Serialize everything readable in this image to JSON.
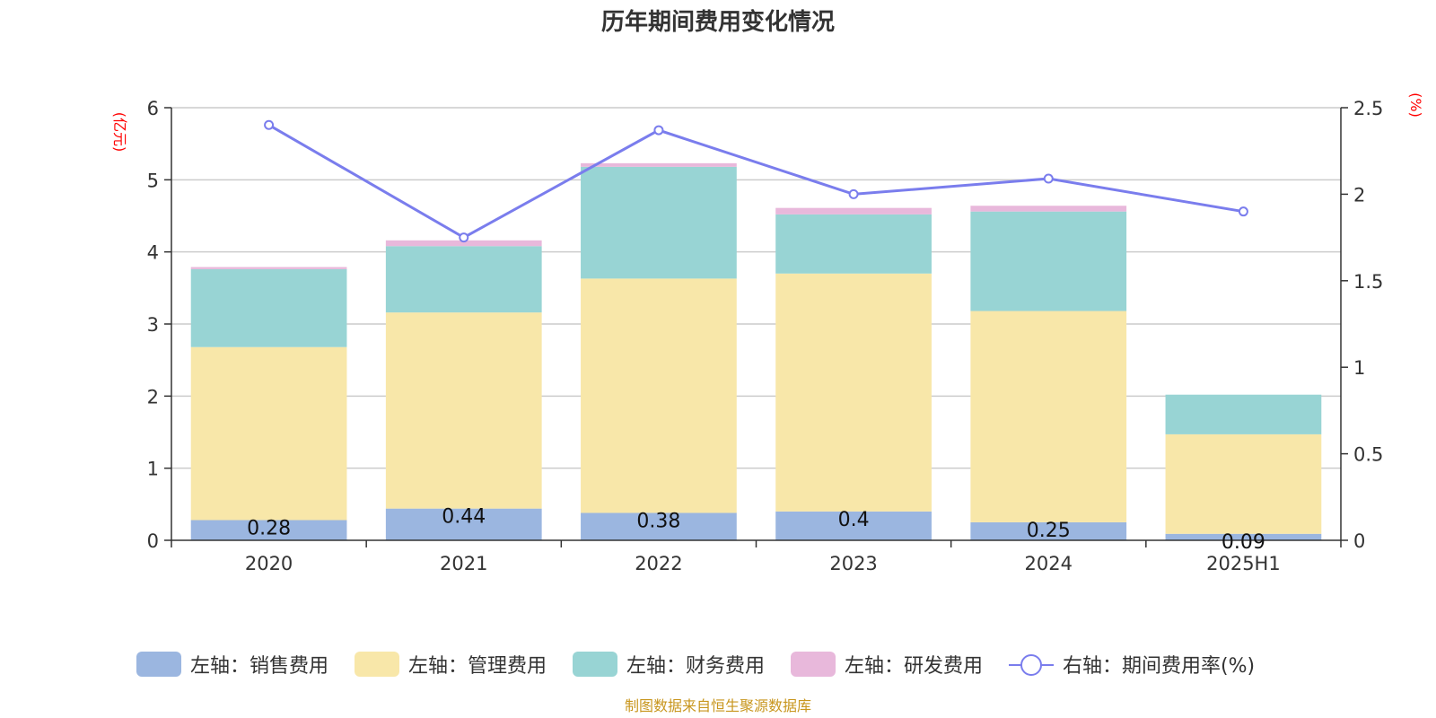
{
  "chart_data": {
    "type": "bar",
    "title": "历年期间费用变化情况",
    "left_axis_unit": "(亿元)",
    "right_axis_unit": "(%)",
    "categories": [
      "2020",
      "2021",
      "2022",
      "2023",
      "2024",
      "2025H1"
    ],
    "ylim_left": [
      0,
      6
    ],
    "yticks_left": [
      0,
      1,
      2,
      3,
      4,
      5,
      6
    ],
    "ylim_right": [
      0,
      2.5
    ],
    "yticks_right": [
      "0",
      "0.5",
      "1",
      "1.5",
      "2",
      "2.5"
    ],
    "grid": true,
    "legend_position": "bottom",
    "series": [
      {
        "name": "左轴：销售费用",
        "type": "bar",
        "axis": "left",
        "stack": "total",
        "color": "#9bb6e0",
        "values": [
          0.28,
          0.44,
          0.38,
          0.4,
          0.25,
          0.09
        ],
        "data_labels": [
          "0.28",
          "0.44",
          "0.38",
          "0.4",
          "0.25",
          "0.09"
        ]
      },
      {
        "name": "左轴：管理费用",
        "type": "bar",
        "axis": "left",
        "stack": "total",
        "color": "#f8e7a9",
        "values": [
          2.4,
          2.72,
          3.25,
          3.3,
          2.93,
          1.38
        ]
      },
      {
        "name": "左轴：财务费用",
        "type": "bar",
        "axis": "left",
        "stack": "total",
        "color": "#98d4d4",
        "values": [
          1.08,
          0.92,
          1.55,
          0.82,
          1.38,
          0.55
        ]
      },
      {
        "name": "左轴：研发费用",
        "type": "bar",
        "axis": "left",
        "stack": "total",
        "color": "#e8b8db",
        "values": [
          0.03,
          0.08,
          0.05,
          0.09,
          0.08,
          0.0
        ]
      },
      {
        "name": "右轴：期间费用率(%)",
        "type": "line",
        "axis": "right",
        "color": "#7a7ded",
        "values": [
          2.4,
          1.75,
          2.37,
          2.0,
          2.09,
          1.9
        ]
      }
    ]
  },
  "footer": {
    "source": "制图数据来自恒生聚源数据库"
  }
}
